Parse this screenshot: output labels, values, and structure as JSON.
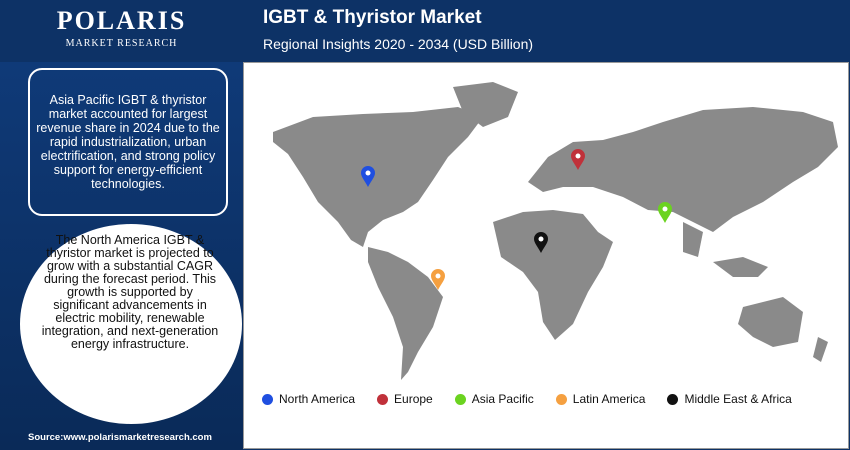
{
  "header": {
    "logo": "POLARIS",
    "logo_sub": "MARKET RESEARCH",
    "title": "IGBT & Thyristor Market",
    "subtitle": "Regional Insights 2020 - 2034 (USD Billion)"
  },
  "callouts": [
    "Asia Pacific IGBT & thyristor market accounted for largest revenue share in 2024 due to the rapid industrialization, urban electrification, and strong policy support for energy-efficient technologies.",
    "The North America IGBT & thyristor market is projected to grow with a substantial CAGR during the forecast period. This growth is supported by significant advancements in electric mobility, renewable integration, and next-generation energy infrastructure."
  ],
  "legend": [
    {
      "name": "North America",
      "color": "#1f4fe0"
    },
    {
      "name": "Europe",
      "color": "#c0313a"
    },
    {
      "name": "Asia Pacific",
      "color": "#6bd320"
    },
    {
      "name": "Latin America",
      "color": "#f5a040"
    },
    {
      "name": "Middle East & Africa",
      "color": "#111111"
    }
  ],
  "source": "Source:www.polarismarketresearch.com"
}
